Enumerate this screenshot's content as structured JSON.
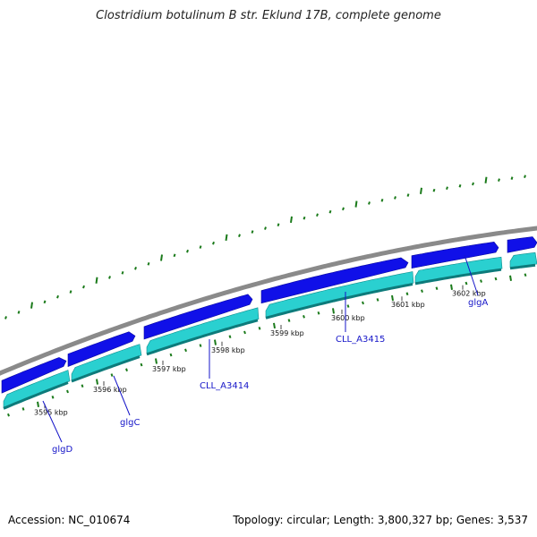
{
  "title": "Clostridium botulinum B str. Eklund 17B, complete genome",
  "footer": {
    "accession": "Accession: NC_010674",
    "summary": "Topology: circular; Length: 3,800,327 bp; Genes: 3,537"
  },
  "colors": {
    "backbone": "#8a8a8a",
    "forward_gene": "#1010e8",
    "reverse_gene": "#2ad0d0",
    "gc_skew": "#1a7a1a",
    "label": "#1515c8"
  },
  "position_ticks": [
    {
      "label": "3595 kbp"
    },
    {
      "label": "3596 kbp"
    },
    {
      "label": "3597 kbp"
    },
    {
      "label": "3598 kbp"
    },
    {
      "label": "3599 kbp"
    },
    {
      "label": "3600 kbp"
    },
    {
      "label": "3601 kbp"
    },
    {
      "label": "3602 kbp"
    }
  ],
  "gene_labels": [
    {
      "name": "glgD"
    },
    {
      "name": "glgC"
    },
    {
      "name": "CLL_A3414"
    },
    {
      "name": "CLL_A3415"
    },
    {
      "name": "glgA"
    }
  ]
}
